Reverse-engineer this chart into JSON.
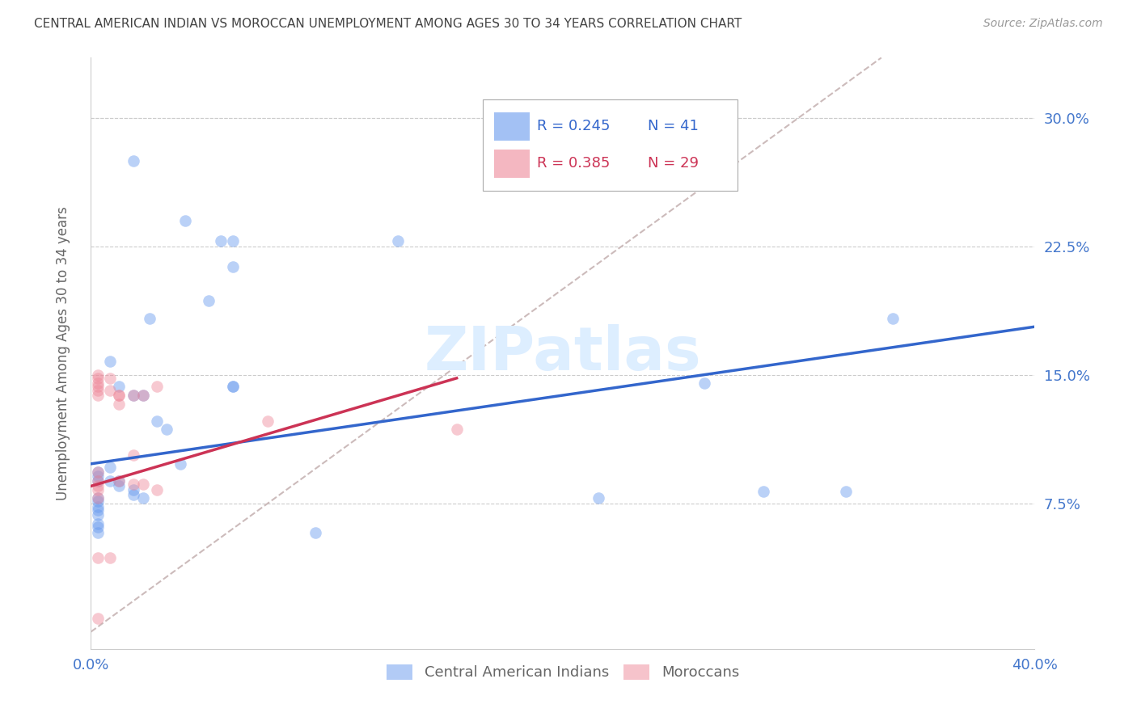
{
  "title": "CENTRAL AMERICAN INDIAN VS MOROCCAN UNEMPLOYMENT AMONG AGES 30 TO 34 YEARS CORRELATION CHART",
  "source": "Source: ZipAtlas.com",
  "ylabel": "Unemployment Among Ages 30 to 34 years",
  "xlim": [
    0.0,
    0.4
  ],
  "ylim": [
    -0.01,
    0.335
  ],
  "xticks": [
    0.0,
    0.1,
    0.2,
    0.3,
    0.4
  ],
  "xticklabels": [
    "0.0%",
    "",
    "",
    "",
    "40.0%"
  ],
  "yticks": [
    0.075,
    0.15,
    0.225,
    0.3
  ],
  "yticklabels": [
    "7.5%",
    "15.0%",
    "22.5%",
    "30.0%"
  ],
  "background_color": "#ffffff",
  "watermark": "ZIPatlas",
  "legend_r_blue": "0.245",
  "legend_n_blue": "41",
  "legend_r_pink": "0.385",
  "legend_n_pink": "29",
  "blue_scatter_x": [
    0.018,
    0.04,
    0.055,
    0.06,
    0.06,
    0.05,
    0.025,
    0.008,
    0.012,
    0.018,
    0.022,
    0.028,
    0.032,
    0.038,
    0.008,
    0.003,
    0.003,
    0.003,
    0.008,
    0.012,
    0.012,
    0.018,
    0.018,
    0.022,
    0.003,
    0.003,
    0.003,
    0.003,
    0.003,
    0.003,
    0.003,
    0.003,
    0.13,
    0.06,
    0.06,
    0.26,
    0.285,
    0.34,
    0.32,
    0.215,
    0.095
  ],
  "blue_scatter_y": [
    0.275,
    0.24,
    0.228,
    0.228,
    0.213,
    0.193,
    0.183,
    0.158,
    0.143,
    0.138,
    0.138,
    0.123,
    0.118,
    0.098,
    0.096,
    0.093,
    0.091,
    0.088,
    0.088,
    0.088,
    0.085,
    0.083,
    0.08,
    0.078,
    0.078,
    0.076,
    0.073,
    0.071,
    0.068,
    0.063,
    0.061,
    0.058,
    0.228,
    0.143,
    0.143,
    0.145,
    0.082,
    0.183,
    0.082,
    0.078,
    0.058
  ],
  "pink_scatter_x": [
    0.003,
    0.003,
    0.003,
    0.003,
    0.003,
    0.003,
    0.003,
    0.003,
    0.003,
    0.003,
    0.003,
    0.008,
    0.008,
    0.012,
    0.012,
    0.012,
    0.012,
    0.018,
    0.018,
    0.018,
    0.022,
    0.022,
    0.028,
    0.028,
    0.075,
    0.155,
    0.008,
    0.003,
    0.003
  ],
  "pink_scatter_y": [
    0.15,
    0.148,
    0.145,
    0.143,
    0.141,
    0.138,
    0.093,
    0.088,
    0.085,
    0.083,
    0.078,
    0.148,
    0.141,
    0.138,
    0.138,
    0.133,
    0.088,
    0.138,
    0.103,
    0.086,
    0.138,
    0.086,
    0.143,
    0.083,
    0.123,
    0.118,
    0.043,
    0.043,
    0.008
  ],
  "blue_line_x": [
    0.0,
    0.4
  ],
  "blue_line_y": [
    0.098,
    0.178
  ],
  "pink_line_x": [
    0.0,
    0.155
  ],
  "pink_line_y": [
    0.085,
    0.148
  ],
  "dashed_line_x": [
    0.0,
    0.335
  ],
  "dashed_line_y": [
    0.0,
    0.335
  ],
  "blue_color": "#6699ee",
  "pink_color": "#ee8899",
  "blue_line_color": "#3366cc",
  "pink_line_color": "#cc3355",
  "dashed_color": "#ccbbbb",
  "title_color": "#444444",
  "axis_label_color": "#666666",
  "tick_color": "#4477cc",
  "grid_color": "#cccccc",
  "watermark_color": "#ddeeff",
  "scatter_alpha": 0.45,
  "scatter_size": 110
}
